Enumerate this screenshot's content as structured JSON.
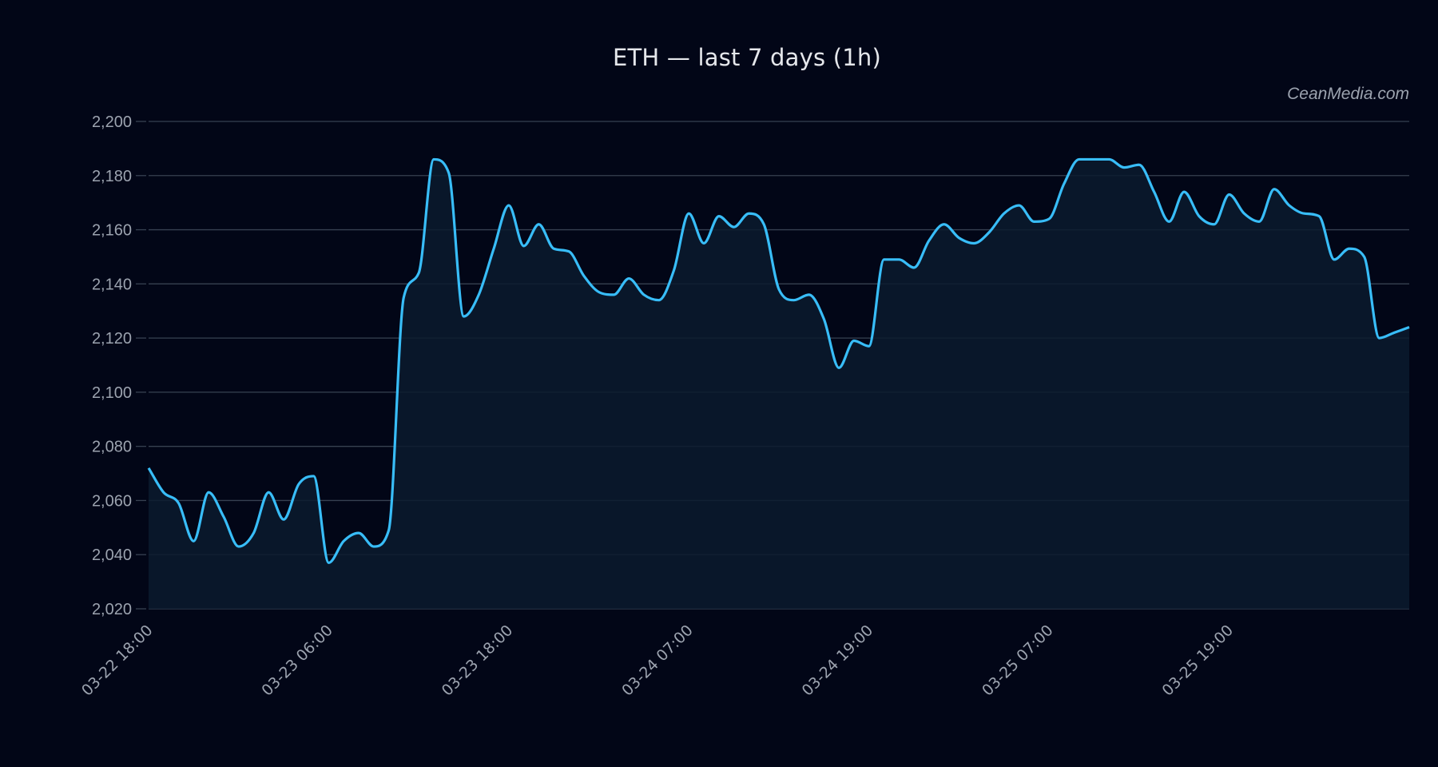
{
  "title": "ETH — last 7 days (1h)",
  "watermark": "CeanMedia.com",
  "colors": {
    "background": "#020617",
    "line": "#38bdf8",
    "fill": "#0b1b2e",
    "grid": "#374151",
    "tick_text": "#9ca3af",
    "title_text": "#e5e7eb"
  },
  "chart_data": {
    "type": "area",
    "title": "ETH — last 7 days (1h)",
    "xlabel": "",
    "ylabel": "",
    "ylim": [
      2020,
      2200
    ],
    "yticks": [
      2020,
      2040,
      2060,
      2080,
      2100,
      2120,
      2140,
      2160,
      2180,
      2200
    ],
    "ytick_labels": [
      "2,020",
      "2,040",
      "2,060",
      "2,080",
      "2,100",
      "2,120",
      "2,140",
      "2,160",
      "2,180",
      "2,200"
    ],
    "xtick_labels": [
      "03-22 18:00",
      "03-23 06:00",
      "03-23 18:00",
      "03-24 07:00",
      "03-24 19:00",
      "03-25 07:00",
      "03-25 19:00"
    ],
    "xtick_indices": [
      0,
      12,
      24,
      36,
      48,
      60,
      72
    ],
    "grid": true,
    "legend": null,
    "series": [
      {
        "name": "ETH",
        "values": [
          2072,
          2063,
          2059,
          2045,
          2063,
          2054,
          2043,
          2048,
          2063,
          2053,
          2066,
          2069,
          2037,
          2045,
          2048,
          2043,
          2049,
          2135,
          2144,
          2186,
          2181,
          2128,
          2136,
          2153,
          2169,
          2154,
          2162,
          2153,
          2152,
          2143,
          2137,
          2136,
          2142,
          2136,
          2134,
          2145,
          2166,
          2155,
          2165,
          2161,
          2166,
          2162,
          2138,
          2134,
          2136,
          2127,
          2109,
          2119,
          2117,
          2149,
          2149,
          2146,
          2156,
          2162,
          2157,
          2155,
          2159,
          2166,
          2169,
          2163,
          2164,
          2177,
          2186,
          2186,
          2186,
          2183,
          2184,
          2174,
          2163,
          2174,
          2165,
          2162,
          2173,
          2166,
          2163,
          2175,
          2169,
          2166,
          2165,
          2149,
          2153,
          2150,
          2120,
          2122,
          2124
        ]
      }
    ]
  }
}
